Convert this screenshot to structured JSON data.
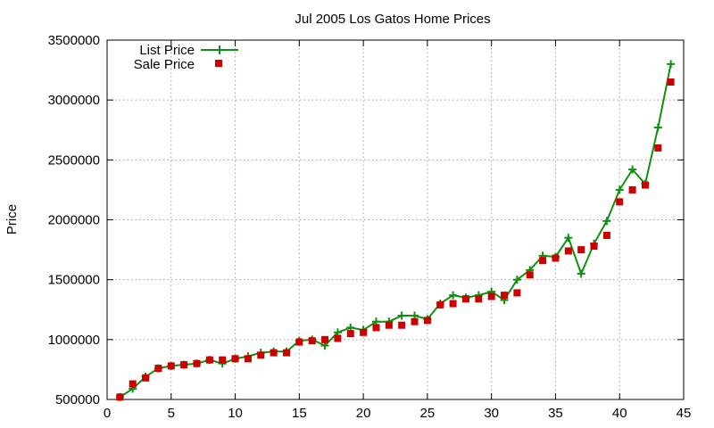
{
  "chart_data": {
    "type": "line",
    "title": "Jul 2005 Los Gatos Home Prices",
    "xlabel": "",
    "ylabel": "Price",
    "xlim": [
      0,
      45
    ],
    "ylim": [
      500000,
      3500000
    ],
    "x_ticks": [
      0,
      5,
      10,
      15,
      20,
      25,
      30,
      35,
      40,
      45
    ],
    "y_ticks": [
      500000,
      1000000,
      1500000,
      2000000,
      2500000,
      3000000,
      3500000
    ],
    "grid": true,
    "legend_position": "top-left",
    "x": [
      1,
      2,
      3,
      4,
      5,
      6,
      7,
      8,
      9,
      10,
      11,
      12,
      13,
      14,
      15,
      16,
      17,
      18,
      19,
      20,
      21,
      22,
      23,
      24,
      25,
      26,
      27,
      28,
      29,
      30,
      31,
      32,
      33,
      34,
      35,
      36,
      37,
      38,
      39,
      40,
      41,
      42,
      43,
      44
    ],
    "series": [
      {
        "name": "List Price",
        "style": "line-plus",
        "color": "#109010",
        "values": [
          520000,
          590000,
          690000,
          760000,
          780000,
          790000,
          800000,
          830000,
          800000,
          840000,
          860000,
          890000,
          900000,
          900000,
          990000,
          1000000,
          950000,
          1060000,
          1100000,
          1080000,
          1150000,
          1150000,
          1200000,
          1200000,
          1170000,
          1300000,
          1370000,
          1350000,
          1370000,
          1400000,
          1330000,
          1500000,
          1580000,
          1700000,
          1690000,
          1850000,
          1550000,
          1800000,
          1990000,
          2250000,
          2420000,
          2300000,
          2770000,
          3300000
        ]
      },
      {
        "name": "Sale Price",
        "style": "square-markers",
        "color": "#cc0000",
        "values": [
          520000,
          630000,
          680000,
          760000,
          780000,
          790000,
          800000,
          830000,
          830000,
          840000,
          840000,
          870000,
          890000,
          890000,
          980000,
          990000,
          1000000,
          1010000,
          1050000,
          1060000,
          1100000,
          1120000,
          1120000,
          1150000,
          1160000,
          1290000,
          1300000,
          1340000,
          1340000,
          1360000,
          1370000,
          1390000,
          1540000,
          1660000,
          1680000,
          1740000,
          1750000,
          1780000,
          1870000,
          2150000,
          2250000,
          2290000,
          2600000,
          3150000
        ]
      }
    ]
  }
}
